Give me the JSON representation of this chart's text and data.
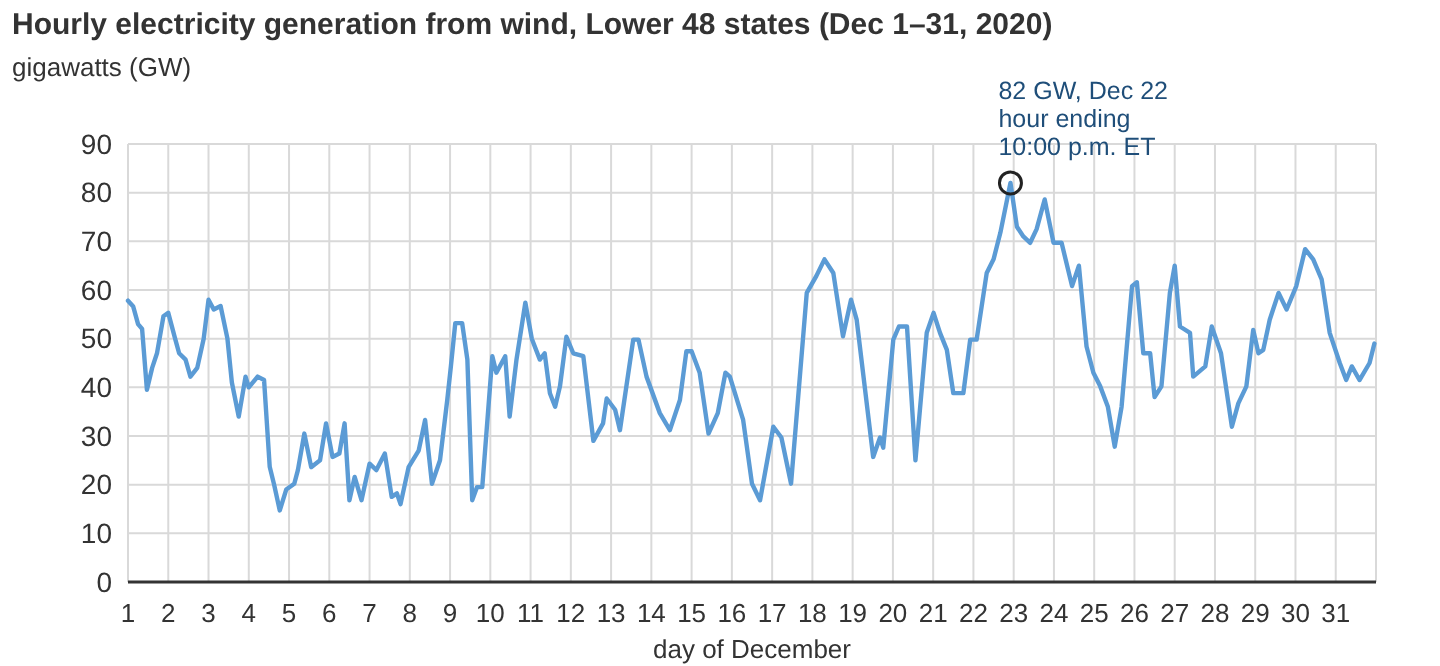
{
  "chart_data": {
    "type": "line",
    "title": "Hourly electricity generation from wind, Lower 48 states (Dec 1–31, 2020)",
    "ylabel": "gigawatts (GW)",
    "xlabel": "day of December",
    "annotations": [
      {
        "text": "82 GW, Dec 22\nhour ending\n10:00 p.m. ET",
        "x": 22.92,
        "y": 82
      }
    ],
    "xlim": [
      1,
      32
    ],
    "xticks": [
      1,
      2,
      3,
      4,
      5,
      6,
      7,
      8,
      9,
      10,
      11,
      12,
      13,
      14,
      15,
      16,
      17,
      18,
      19,
      20,
      21,
      22,
      23,
      24,
      25,
      26,
      27,
      28,
      29,
      30,
      31
    ],
    "ylim": [
      0,
      90
    ],
    "yticks": [
      0,
      10,
      20,
      30,
      40,
      50,
      60,
      70,
      80,
      90
    ],
    "grid": true,
    "marker": "none",
    "line_style": "solid",
    "series": [
      {
        "color": "#5b9bd5",
        "x": [
          1.0,
          1.13,
          1.25,
          1.35,
          1.47,
          1.6,
          1.72,
          1.88,
          2.0,
          2.17,
          2.27,
          2.43,
          2.55,
          2.72,
          2.88,
          3.0,
          3.13,
          3.3,
          3.47,
          3.58,
          3.75,
          3.92,
          4.0,
          4.22,
          4.38,
          4.52,
          4.63,
          4.77,
          4.93,
          5.13,
          5.22,
          5.38,
          5.55,
          5.77,
          5.92,
          6.08,
          6.25,
          6.38,
          6.5,
          6.63,
          6.8,
          7.0,
          7.17,
          7.38,
          7.55,
          7.68,
          7.77,
          7.97,
          8.22,
          8.38,
          8.55,
          8.75,
          8.93,
          9.02,
          9.13,
          9.3,
          9.43,
          9.55,
          9.67,
          9.8,
          10.05,
          10.15,
          10.37,
          10.48,
          10.65,
          10.87,
          11.03,
          11.23,
          11.35,
          11.48,
          11.61,
          11.73,
          11.89,
          12.06,
          12.31,
          12.56,
          12.8,
          12.89,
          13.1,
          13.22,
          13.55,
          13.68,
          13.88,
          14.21,
          14.46,
          14.71,
          14.87,
          15.0,
          15.2,
          15.42,
          15.65,
          15.84,
          15.95,
          16.28,
          16.5,
          16.7,
          17.03,
          17.23,
          17.47,
          17.86,
          18.1,
          18.3,
          18.52,
          18.76,
          18.96,
          19.1,
          19.51,
          19.68,
          19.76,
          20.01,
          20.15,
          20.35,
          20.56,
          20.84,
          21.01,
          21.17,
          21.34,
          21.5,
          21.75,
          21.92,
          22.08,
          22.33,
          22.5,
          22.67,
          22.92,
          23.08,
          23.24,
          23.41,
          23.57,
          23.77,
          23.99,
          24.19,
          24.45,
          24.62,
          24.81,
          24.98,
          25.15,
          25.34,
          25.51,
          25.68,
          25.94,
          26.06,
          26.22,
          26.39,
          26.5,
          26.67,
          26.88,
          27.0,
          27.13,
          27.38,
          27.46,
          27.76,
          27.92,
          28.15,
          28.42,
          28.58,
          28.78,
          28.95,
          29.08,
          29.2,
          29.36,
          29.58,
          29.78,
          30.02,
          30.24,
          30.44,
          30.65,
          30.85,
          31.1,
          31.26,
          31.4,
          31.59,
          31.84,
          31.96
        ],
        "values": [
          57.8,
          56.6,
          53,
          52,
          39.5,
          44,
          47,
          54.6,
          55.3,
          50,
          47,
          45.7,
          42.2,
          44,
          50,
          58,
          56,
          56.7,
          50,
          41,
          34,
          42.2,
          40,
          42.2,
          41.5,
          23.7,
          20,
          14.7,
          19,
          20.2,
          23,
          30.5,
          23.6,
          25,
          32.6,
          25.7,
          26.4,
          32.6,
          16.8,
          21.6,
          16.8,
          24.3,
          23,
          26.4,
          17.5,
          18.2,
          16,
          23.6,
          27,
          33.3,
          20.2,
          25,
          37.4,
          44.3,
          53.2,
          53.2,
          45.7,
          16.8,
          19.5,
          19.5,
          46.4,
          43,
          46.4,
          34,
          45.7,
          57.4,
          50,
          45.7,
          47,
          38.8,
          36,
          40.2,
          50.4,
          47,
          46.4,
          29,
          32.6,
          37.7,
          35.4,
          31.2,
          49.8,
          49.8,
          42.2,
          34.7,
          31.2,
          37.4,
          47.4,
          47.4,
          43,
          30.5,
          34.7,
          43,
          42.2,
          33.3,
          20.2,
          16.8,
          31.9,
          29.7,
          20.2,
          59.4,
          62.9,
          66.3,
          63.5,
          50.5,
          58,
          53.9,
          25.7,
          29.7,
          27.6,
          49.8,
          52.5,
          52.5,
          25,
          51.2,
          55.3,
          51.2,
          47.7,
          38.8,
          38.8,
          49.8,
          49.8,
          63.5,
          66.3,
          71.8,
          82,
          73,
          71,
          69.7,
          72.5,
          78.6,
          69.7,
          69.7,
          60.8,
          65,
          48.4,
          43,
          40.2,
          36,
          27.8,
          36,
          60.8,
          61.6,
          47,
          47,
          38,
          40.2,
          59.4,
          65,
          52.5,
          51.2,
          42.2,
          44.3,
          52.5,
          47,
          31.9,
          36.7,
          40.2,
          51.8,
          47,
          47.7,
          53.9,
          59.4,
          56,
          60.8,
          68.4,
          66.3,
          62.2,
          51.2,
          45,
          41.5,
          44.3,
          41.5,
          45,
          49
        ]
      }
    ]
  }
}
